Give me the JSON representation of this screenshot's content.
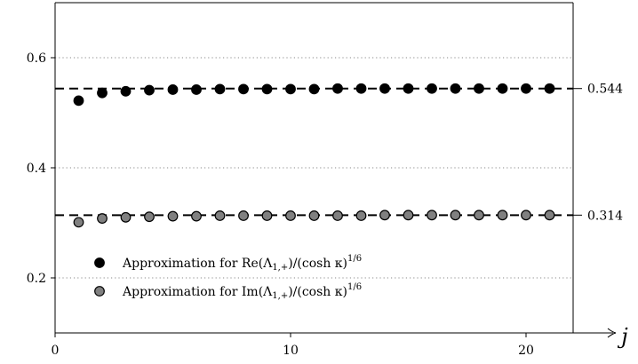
{
  "chart_data": {
    "type": "scatter",
    "xlabel": "j",
    "xlim": [
      0,
      22
    ],
    "ylim": [
      0.1,
      0.7
    ],
    "xticks": [
      0,
      10,
      20
    ],
    "yticks": [
      0.2,
      0.4,
      0.6
    ],
    "ytick_labels": [
      "0.2",
      "0.4",
      "0.6"
    ],
    "grid": "horizontal dotted",
    "legend_position": "bottom-left",
    "series": [
      {
        "name": "Approximation for Re(Λ1,+)/(cosh κ)^1/6",
        "legend_main": "Approximation for Re(Λ",
        "legend_sub": "1,+",
        "legend_tail": ")/(cosh κ)",
        "legend_sup": "1/6",
        "color": "#000000",
        "x": [
          1,
          2,
          3,
          4,
          5,
          6,
          7,
          8,
          9,
          10,
          11,
          12,
          13,
          14,
          15,
          16,
          17,
          18,
          19,
          20,
          21
        ],
        "y": [
          0.522,
          0.536,
          0.539,
          0.541,
          0.542,
          0.542,
          0.543,
          0.543,
          0.543,
          0.543,
          0.543,
          0.544,
          0.544,
          0.544,
          0.544,
          0.544,
          0.544,
          0.544,
          0.544,
          0.544,
          0.544
        ]
      },
      {
        "name": "Approximation for Im(Λ1,+)/(cosh κ)^1/6",
        "legend_main": "Approximation for Im(Λ",
        "legend_sub": "1,+",
        "legend_tail": ")/(cosh κ)",
        "legend_sup": "1/6",
        "color": "#808080",
        "x": [
          1,
          2,
          3,
          4,
          5,
          6,
          7,
          8,
          9,
          10,
          11,
          12,
          13,
          14,
          15,
          16,
          17,
          18,
          19,
          20,
          21
        ],
        "y": [
          0.301,
          0.308,
          0.31,
          0.311,
          0.312,
          0.312,
          0.313,
          0.313,
          0.313,
          0.313,
          0.313,
          0.313,
          0.313,
          0.314,
          0.314,
          0.314,
          0.314,
          0.314,
          0.314,
          0.314,
          0.314
        ]
      }
    ],
    "reference_lines": [
      {
        "value": 0.544,
        "label": "0.544"
      },
      {
        "value": 0.314,
        "label": "0.314"
      }
    ]
  }
}
